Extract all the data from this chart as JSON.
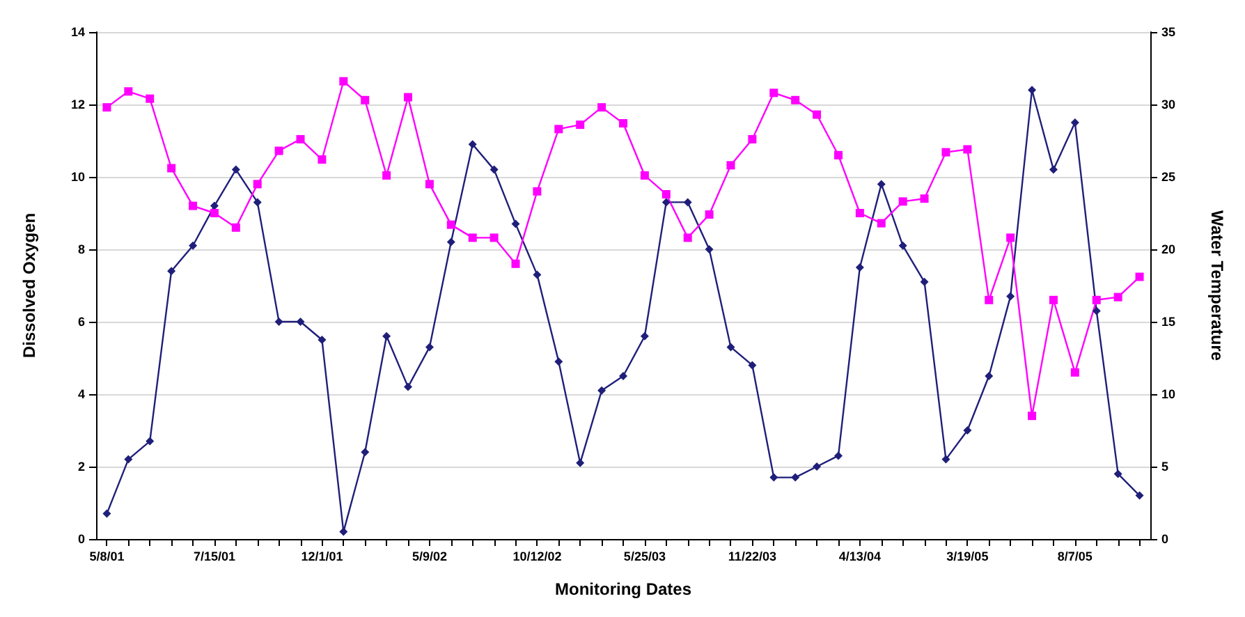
{
  "chart_data": {
    "type": "line",
    "xlabel": "Monitoring Dates",
    "ylabel": "Dissolved Oxygen",
    "y2label": "Water Temperature",
    "categories": [
      "5/8/01",
      null,
      null,
      null,
      null,
      "7/15/01",
      null,
      null,
      null,
      null,
      "12/1/01",
      null,
      null,
      null,
      null,
      "5/9/02",
      null,
      null,
      null,
      null,
      "10/12/02",
      null,
      null,
      null,
      null,
      "5/25/03",
      null,
      null,
      null,
      null,
      "11/22/03",
      null,
      null,
      null,
      null,
      "4/13/04",
      null,
      null,
      null,
      null,
      "3/19/05",
      null,
      null,
      null,
      null,
      "8/7/05",
      null,
      null,
      null
    ],
    "series": [
      {
        "color": "#1f1f7a",
        "marker": "diamond",
        "values": [
          0.7,
          2.2,
          2.7,
          7.4,
          8.1,
          9.2,
          10.2,
          9.3,
          6.0,
          6.0,
          5.5,
          0.2,
          2.4,
          5.6,
          4.2,
          5.3,
          8.2,
          10.9,
          10.2,
          8.7,
          7.3,
          4.9,
          2.1,
          4.1,
          4.5,
          5.6,
          9.3,
          9.3,
          8.0,
          5.3,
          4.8,
          1.7,
          1.7,
          2.0,
          2.3,
          7.5,
          9.8,
          8.1,
          7.1,
          2.2,
          3.0,
          4.5,
          6.7,
          12.4,
          10.2,
          11.5,
          6.3,
          1.8,
          1.2
        ]
      },
      {
        "color": "#ff00ff",
        "marker": "square",
        "axis": "y2",
        "values": [
          29.8,
          30.9,
          30.4,
          25.6,
          23.0,
          22.5,
          21.5,
          24.5,
          26.8,
          27.6,
          26.2,
          31.6,
          30.3,
          25.1,
          30.5,
          24.5,
          21.7,
          20.8,
          20.8,
          19.0,
          24.0,
          28.3,
          28.6,
          29.8,
          28.7,
          25.1,
          23.8,
          20.8,
          22.4,
          25.8,
          27.6,
          30.8,
          30.3,
          29.3,
          26.5,
          22.5,
          21.8,
          23.3,
          23.5,
          26.7,
          26.9,
          16.5,
          20.8,
          8.5,
          16.5,
          11.5,
          16.5,
          16.7,
          18.1
        ]
      }
    ],
    "ylim": [
      0,
      14
    ],
    "yticks": [
      0,
      2,
      4,
      6,
      8,
      10,
      12,
      14
    ],
    "y2lim": [
      0,
      35
    ],
    "y2ticks": [
      0,
      5,
      10,
      15,
      20,
      25,
      30,
      35
    ],
    "grid": "y",
    "line_style": "solid"
  }
}
